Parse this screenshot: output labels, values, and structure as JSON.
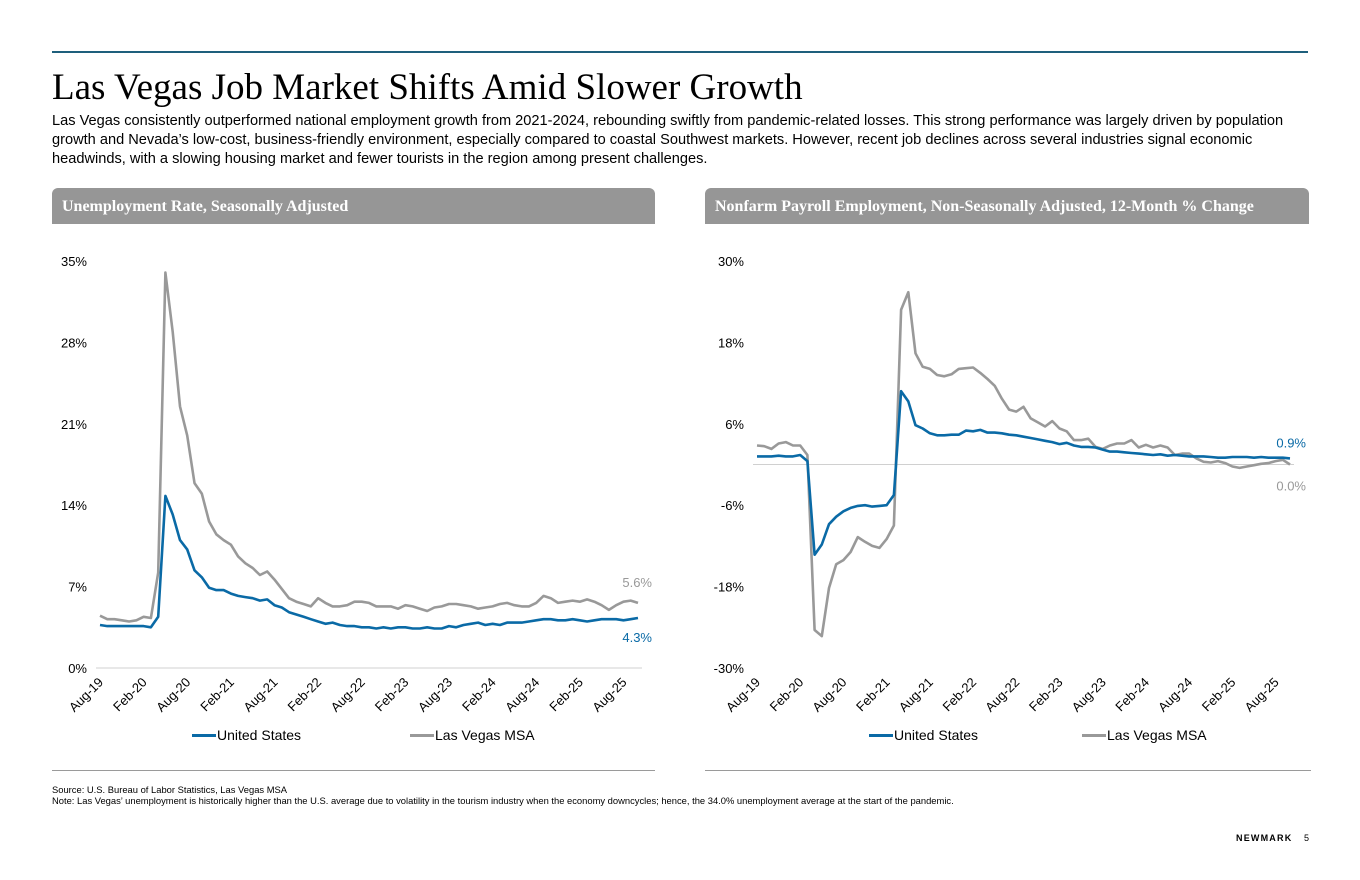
{
  "header": {
    "title": "Las Vegas Job Market Shifts Amid Slower Growth",
    "intro": "Las Vegas consistently outperformed national employment growth from 2021-2024, rebounding swiftly from pandemic-related losses. This strong performance was largely driven by population growth and Nevada’s low-cost, business-friendly environment, especially compared to coastal Southwest markets. However, recent job declines across several industries signal economic headwinds, with a slowing housing market and fewer tourists in the region among present challenges."
  },
  "colors": {
    "us": "#0a6aa6",
    "lv": "#999999",
    "rule": "#1e5f7c",
    "panel": "#969696"
  },
  "chart_data": [
    {
      "type": "line",
      "title": "Unemployment Rate, Seasonally Adjusted",
      "xlabel": "",
      "ylabel": "",
      "ylim": [
        0,
        35
      ],
      "yticks": [
        "0%",
        "7%",
        "14%",
        "21%",
        "28%",
        "35%"
      ],
      "ytick_values": [
        0,
        7,
        14,
        21,
        28,
        35
      ],
      "xticks": [
        "Aug-19",
        "Feb-20",
        "Aug-20",
        "Feb-21",
        "Aug-21",
        "Feb-22",
        "Aug-22",
        "Feb-23",
        "Aug-23",
        "Feb-24",
        "Aug-24",
        "Feb-25",
        "Aug-25"
      ],
      "grid": false,
      "baseline": 0,
      "legend": "bottom",
      "end_labels": [
        {
          "series": "Las Vegas MSA",
          "text": "5.6%"
        },
        {
          "series": "United States",
          "text": "4.3%"
        }
      ],
      "series": [
        {
          "name": "United States",
          "color": "#0a6aa6",
          "values": [
            3.7,
            3.6,
            3.6,
            3.6,
            3.6,
            3.6,
            3.6,
            3.5,
            4.4,
            14.8,
            13.2,
            11.0,
            10.2,
            8.4,
            7.8,
            6.9,
            6.7,
            6.7,
            6.4,
            6.2,
            6.1,
            6.0,
            5.8,
            5.9,
            5.4,
            5.2,
            4.8,
            4.6,
            4.4,
            4.2,
            4.0,
            3.8,
            3.9,
            3.7,
            3.6,
            3.6,
            3.5,
            3.5,
            3.4,
            3.5,
            3.4,
            3.5,
            3.5,
            3.4,
            3.4,
            3.5,
            3.4,
            3.4,
            3.6,
            3.5,
            3.7,
            3.8,
            3.9,
            3.7,
            3.8,
            3.7,
            3.9,
            3.9,
            3.9,
            4.0,
            4.1,
            4.2,
            4.2,
            4.1,
            4.1,
            4.2,
            4.1,
            4.0,
            4.1,
            4.2,
            4.2,
            4.2,
            4.1,
            4.2,
            4.3
          ]
        },
        {
          "name": "Las Vegas MSA",
          "color": "#999999",
          "values": [
            4.5,
            4.2,
            4.2,
            4.1,
            4.0,
            4.1,
            4.4,
            4.3,
            8.2,
            34.0,
            28.9,
            22.5,
            20.0,
            15.9,
            15.0,
            12.6,
            11.5,
            11.0,
            10.6,
            9.6,
            9.0,
            8.6,
            8.0,
            8.3,
            7.6,
            6.8,
            6.0,
            5.7,
            5.5,
            5.3,
            6.0,
            5.6,
            5.3,
            5.3,
            5.4,
            5.7,
            5.7,
            5.6,
            5.3,
            5.3,
            5.3,
            5.1,
            5.4,
            5.3,
            5.1,
            4.9,
            5.2,
            5.3,
            5.5,
            5.5,
            5.4,
            5.3,
            5.1,
            5.2,
            5.3,
            5.5,
            5.6,
            5.4,
            5.3,
            5.3,
            5.6,
            6.2,
            6.0,
            5.6,
            5.7,
            5.8,
            5.7,
            5.9,
            5.7,
            5.4,
            5.0,
            5.4,
            5.7,
            5.8,
            5.6
          ]
        }
      ]
    },
    {
      "type": "line",
      "title": "Nonfarm Payroll Employment, Non-Seasonally Adjusted, 12-Month % Change",
      "xlabel": "",
      "ylabel": "",
      "ylim": [
        -30,
        30
      ],
      "yticks": [
        "-30%",
        "-18%",
        "-6%",
        "6%",
        "18%",
        "30%"
      ],
      "ytick_values": [
        -30,
        -18,
        -6,
        6,
        18,
        30
      ],
      "xticks": [
        "Aug-19",
        "Feb-20",
        "Aug-20",
        "Feb-21",
        "Aug-21",
        "Feb-22",
        "Aug-22",
        "Feb-23",
        "Aug-23",
        "Feb-24",
        "Aug-24",
        "Feb-25",
        "Aug-25"
      ],
      "grid": false,
      "baseline": 0,
      "legend": "bottom",
      "end_labels": [
        {
          "series": "United States",
          "text": "0.9%"
        },
        {
          "series": "Las Vegas MSA",
          "text": "0.0%"
        }
      ],
      "series": [
        {
          "name": "United States",
          "color": "#0a6aa6",
          "values": [
            1.2,
            1.2,
            1.2,
            1.3,
            1.2,
            1.2,
            1.4,
            0.5,
            -13.3,
            -11.8,
            -8.8,
            -7.7,
            -6.9,
            -6.4,
            -6.1,
            -6.0,
            -6.2,
            -6.1,
            -6.0,
            -4.5,
            10.8,
            9.3,
            5.8,
            5.3,
            4.6,
            4.3,
            4.3,
            4.4,
            4.4,
            5.0,
            4.9,
            5.1,
            4.7,
            4.7,
            4.6,
            4.4,
            4.3,
            4.1,
            3.9,
            3.7,
            3.5,
            3.3,
            3.0,
            3.2,
            2.8,
            2.6,
            2.6,
            2.5,
            2.2,
            1.9,
            1.9,
            1.8,
            1.7,
            1.6,
            1.5,
            1.4,
            1.5,
            1.3,
            1.4,
            1.3,
            1.2,
            1.2,
            1.2,
            1.1,
            1.0,
            1.0,
            1.1,
            1.1,
            1.1,
            1.0,
            1.1,
            1.0,
            1.0,
            1.0,
            0.9
          ]
        },
        {
          "name": "Las Vegas MSA",
          "color": "#999999",
          "values": [
            2.8,
            2.7,
            2.3,
            3.1,
            3.3,
            2.8,
            2.8,
            1.4,
            -24.4,
            -25.3,
            -18.2,
            -14.7,
            -14.1,
            -12.9,
            -10.7,
            -11.4,
            -12.0,
            -12.3,
            -11.0,
            -9.0,
            22.8,
            25.4,
            16.4,
            14.4,
            14.1,
            13.2,
            13.0,
            13.3,
            14.1,
            14.2,
            14.3,
            13.5,
            12.6,
            11.6,
            9.7,
            8.1,
            7.8,
            8.5,
            6.8,
            6.2,
            5.6,
            6.4,
            5.3,
            4.9,
            3.6,
            3.6,
            3.8,
            2.6,
            2.3,
            2.8,
            3.1,
            3.1,
            3.6,
            2.5,
            2.9,
            2.5,
            2.8,
            2.5,
            1.4,
            1.6,
            1.6,
            0.9,
            0.4,
            0.3,
            0.5,
            0.2,
            -0.3,
            -0.5,
            -0.3,
            -0.1,
            0.1,
            0.2,
            0.5,
            0.7,
            0.0
          ]
        }
      ]
    }
  ],
  "legend": {
    "us_label": "United States",
    "lv_label": "Las Vegas MSA"
  },
  "footer": {
    "source": "Source: U.S. Bureau of Labor Statistics, Las Vegas MSA",
    "note": "Note: Las Vegas’ unemployment is historically higher than the U.S. average due to volatility in the tourism industry when the economy downcycles; hence, the 34.0% unemployment average at the start of the pandemic.",
    "brand": "NEWMARK",
    "page": "5"
  }
}
